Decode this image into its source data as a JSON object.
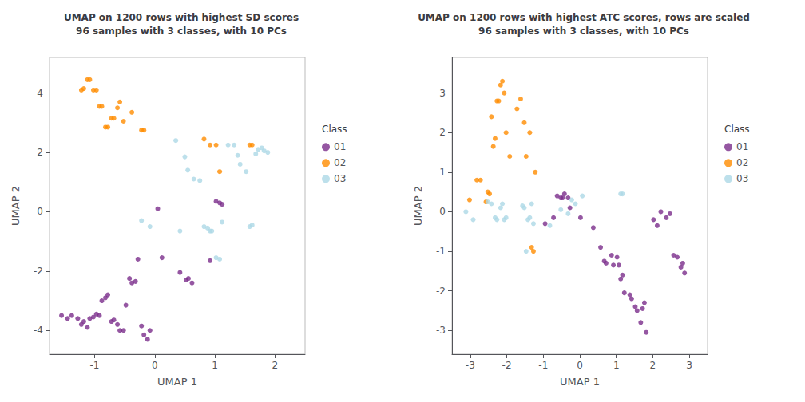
{
  "chart_data": [
    {
      "type": "scatter",
      "title": "UMAP on 1200 rows with highest SD scores\n96 samples with 3 classes, with 10 PCs",
      "xlabel": "UMAP 1",
      "ylabel": "UMAP 2",
      "xlim": [
        -1.75,
        2.5
      ],
      "ylim": [
        -4.8,
        5.2
      ],
      "xticks": [
        -1,
        0,
        1,
        2
      ],
      "yticks": [
        -4,
        -2,
        0,
        2,
        4
      ],
      "grid": false,
      "legend": "right",
      "legend_title": "Class",
      "series": [
        {
          "name": "01",
          "color": "#7B2D8B",
          "x": [
            -1.55,
            -1.45,
            -1.38,
            -1.28,
            -1.22,
            -1.18,
            -1.12,
            -1.08,
            -1.02,
            -0.97,
            -0.92,
            -0.88,
            -0.82,
            -0.78,
            -0.72,
            -0.68,
            -0.62,
            -0.58,
            -0.52,
            -0.48,
            -0.42,
            -0.38,
            -0.32,
            -0.28,
            -0.22,
            -0.18,
            -0.12,
            -0.08,
            0.05,
            0.12,
            0.42,
            0.52,
            0.56,
            0.62,
            0.92,
            1.02,
            1.08,
            1.12
          ],
          "values": [
            -3.5,
            -3.6,
            -3.5,
            -3.6,
            -3.8,
            -3.7,
            -3.9,
            -3.6,
            -3.55,
            -3.45,
            -3.5,
            -3.0,
            -2.9,
            -2.8,
            -3.7,
            -3.65,
            -3.8,
            -4.0,
            -4.0,
            -3.15,
            -2.25,
            -2.4,
            -2.35,
            -1.6,
            -3.85,
            -4.15,
            -4.3,
            -4.0,
            0.1,
            -1.55,
            -2.05,
            -2.3,
            -2.25,
            -2.4,
            -1.65,
            0.35,
            0.3,
            0.25
          ]
        },
        {
          "name": "02",
          "color": "#FF8C00",
          "x": [
            -1.22,
            -1.18,
            -1.12,
            -1.08,
            -1.02,
            -0.97,
            -0.92,
            -0.88,
            -0.82,
            -0.78,
            -0.72,
            -0.68,
            -0.62,
            -0.58,
            -0.52,
            -0.38,
            -0.22,
            -0.18,
            0.82,
            0.92,
            1.02,
            1.08,
            1.58,
            1.62
          ],
          "values": [
            4.1,
            4.15,
            4.45,
            4.45,
            4.1,
            4.1,
            3.55,
            3.55,
            2.85,
            2.85,
            3.15,
            3.15,
            3.5,
            3.7,
            3.05,
            3.35,
            2.75,
            2.75,
            2.45,
            2.25,
            2.25,
            1.35,
            2.25,
            2.25
          ]
        },
        {
          "name": "03",
          "color": "#ADD8E6",
          "x": [
            0.35,
            0.5,
            0.55,
            0.65,
            0.75,
            0.82,
            0.88,
            0.92,
            0.95,
            1.02,
            1.08,
            1.12,
            1.22,
            1.32,
            1.38,
            1.42,
            1.52,
            1.58,
            1.62,
            1.68,
            1.72,
            1.78,
            1.82,
            1.88,
            0.42,
            -0.22,
            -0.08
          ],
          "values": [
            2.4,
            1.85,
            1.4,
            1.1,
            1.05,
            -0.5,
            -0.55,
            -0.65,
            -0.65,
            -1.55,
            -1.6,
            -0.35,
            2.25,
            2.25,
            1.9,
            1.6,
            1.35,
            -0.5,
            -0.45,
            1.95,
            2.1,
            2.15,
            2.05,
            2.0,
            -0.65,
            -0.3,
            -0.5
          ]
        }
      ]
    },
    {
      "type": "scatter",
      "title": "UMAP on 1200 rows with highest ATC scores, rows are scaled\n96 samples with 3 classes, with 10 PCs",
      "xlabel": "UMAP 1",
      "ylabel": "UMAP 2",
      "xlim": [
        -3.5,
        3.5
      ],
      "ylim": [
        -3.6,
        3.9
      ],
      "xticks": [
        -3,
        -2,
        -1,
        0,
        1,
        2,
        3
      ],
      "yticks": [
        -3,
        -2,
        -1,
        0,
        1,
        2,
        3
      ],
      "grid": false,
      "legend": "right",
      "legend_title": "Class",
      "series": [
        {
          "name": "01",
          "color": "#7B2D8B",
          "x": [
            -0.95,
            -0.72,
            -0.62,
            -0.52,
            -0.47,
            -0.42,
            -0.32,
            -0.27,
            0.02,
            0.37,
            0.57,
            0.67,
            0.72,
            0.87,
            0.92,
            1.02,
            1.07,
            1.12,
            1.17,
            1.22,
            1.37,
            1.42,
            1.52,
            1.57,
            1.67,
            1.72,
            1.77,
            1.82,
            2.02,
            2.12,
            2.22,
            2.37,
            2.47,
            2.57,
            2.67,
            2.77,
            2.82,
            2.87
          ],
          "values": [
            -0.3,
            -0.15,
            0.4,
            0.35,
            0.35,
            0.45,
            0.35,
            0.1,
            -0.15,
            -0.4,
            -0.9,
            -1.25,
            -1.3,
            -1.1,
            -1.35,
            -1.15,
            -1.35,
            -1.7,
            -1.6,
            -2.05,
            -2.1,
            -2.2,
            -2.4,
            -2.5,
            -2.8,
            -2.45,
            -2.3,
            -3.05,
            -0.2,
            -0.35,
            0.0,
            -0.15,
            -0.05,
            -1.1,
            -1.15,
            -1.4,
            -1.3,
            -1.55
          ]
        },
        {
          "name": "02",
          "color": "#FF8C00",
          "x": [
            -3.02,
            -2.82,
            -2.72,
            -2.57,
            -2.52,
            -2.47,
            -2.42,
            -2.37,
            -2.32,
            -2.27,
            -2.22,
            -2.17,
            -2.12,
            -2.07,
            -2.02,
            -1.92,
            -1.72,
            -1.62,
            -1.52,
            -1.47,
            -1.37,
            -1.32,
            -1.27,
            -1.22
          ],
          "values": [
            0.3,
            0.8,
            0.8,
            0.25,
            0.5,
            0.45,
            2.4,
            1.65,
            1.85,
            2.8,
            2.8,
            3.2,
            3.3,
            3.0,
            2.0,
            1.4,
            2.6,
            2.85,
            2.25,
            1.4,
            2.0,
            -0.9,
            -1.0,
            1.0
          ]
        },
        {
          "name": "03",
          "color": "#ADD8E6",
          "x": [
            -3.12,
            -2.92,
            -2.52,
            -2.42,
            -2.32,
            -2.27,
            -2.17,
            -2.12,
            -2.07,
            -2.02,
            -1.57,
            -1.52,
            -1.47,
            -1.42,
            -1.37,
            -1.32,
            -1.27,
            -0.82,
            -0.52,
            -0.32,
            -0.22,
            -0.12,
            0.07,
            1.12,
            1.17
          ],
          "values": [
            0.0,
            -0.2,
            0.25,
            0.2,
            -0.15,
            -0.2,
            0.1,
            0.2,
            -0.2,
            -0.15,
            0.15,
            0.1,
            -1.0,
            -0.2,
            -0.15,
            0.2,
            -0.3,
            -0.35,
            0.05,
            -0.05,
            0.3,
            0.2,
            0.4,
            0.45,
            0.45
          ]
        }
      ]
    }
  ]
}
